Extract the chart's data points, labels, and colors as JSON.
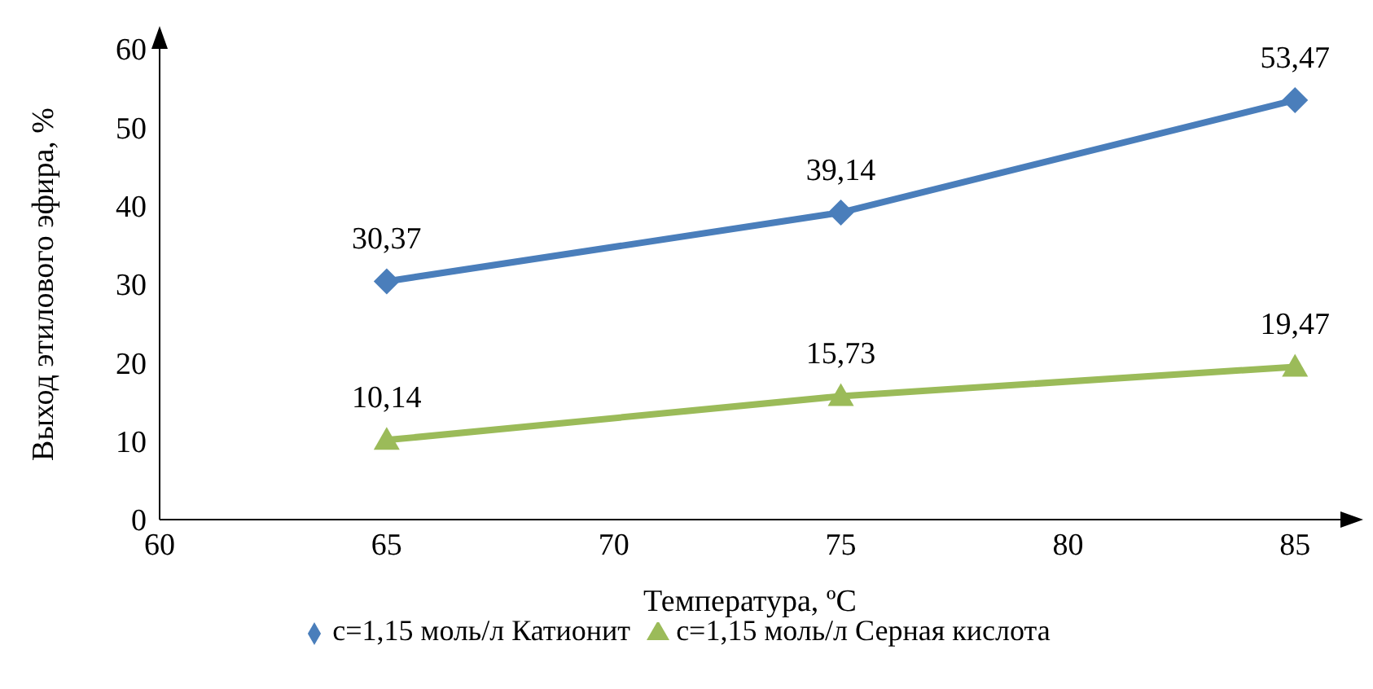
{
  "chart_data": {
    "type": "line",
    "xlabel": "Температура, ºС",
    "ylabel": "Выход  этилового эфира, %",
    "x": [
      65,
      75,
      85
    ],
    "series": [
      {
        "name": "c=1,15 моль/л Катионит",
        "color": "#4a7ebb",
        "marker": "diamond",
        "values": [
          30.37,
          39.14,
          53.47
        ],
        "value_labels": [
          "30,37",
          "39,14",
          "53,47"
        ]
      },
      {
        "name": "c=1,15 моль/л Серная кислота",
        "color": "#9bbb59",
        "marker": "triangle",
        "values": [
          10.14,
          15.73,
          19.47
        ],
        "value_labels": [
          "10,14",
          "15,73",
          "19,47"
        ]
      }
    ],
    "xlim": [
      60,
      86
    ],
    "xticks": [
      60,
      65,
      70,
      75,
      80,
      85
    ],
    "ylim": [
      0,
      60
    ],
    "yticks": [
      0,
      10,
      20,
      30,
      40,
      50,
      60
    ],
    "grid": false,
    "legend": "bottom",
    "line_style": "solid"
  }
}
